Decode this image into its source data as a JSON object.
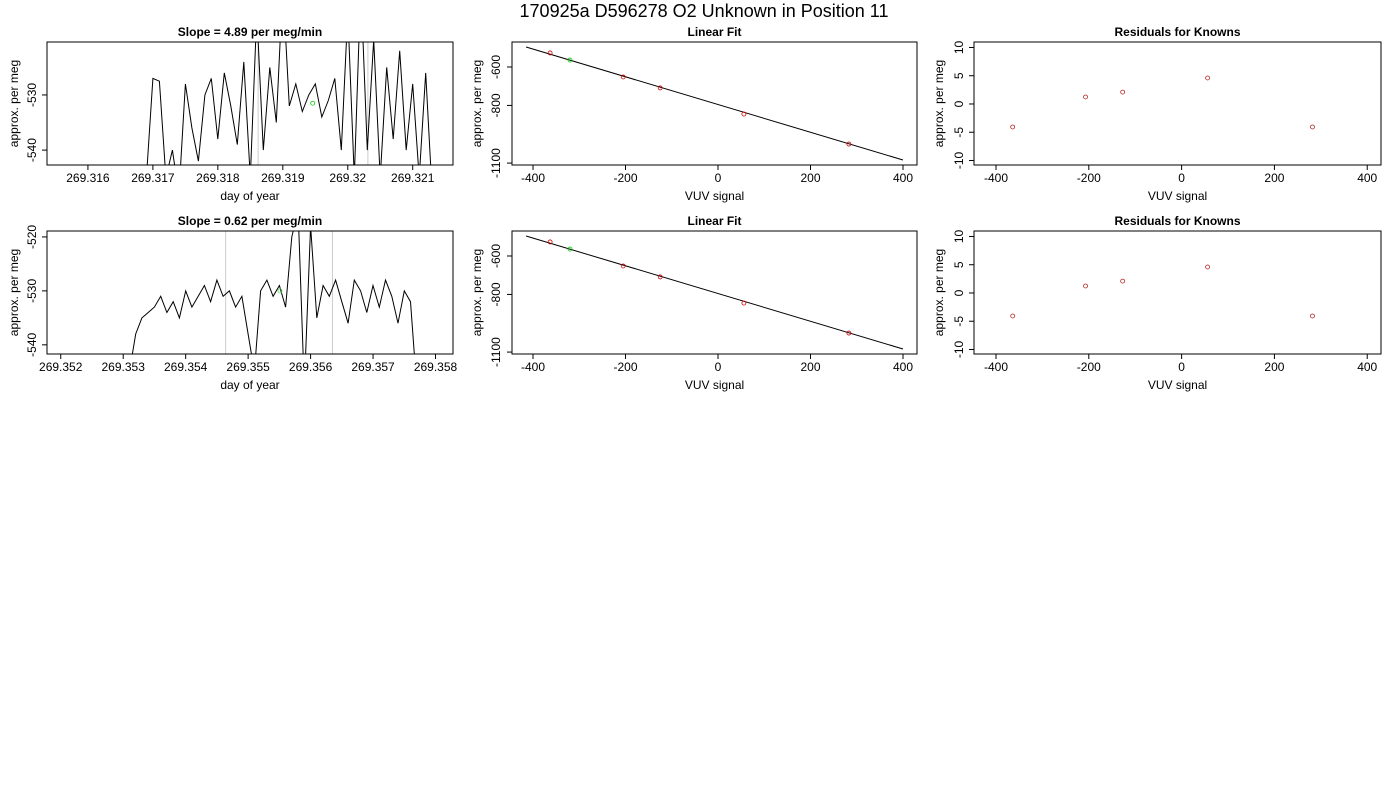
{
  "title": "170925a     D596278   O2 Unknown in Position  11",
  "chart_data": [
    {
      "type": "line",
      "title": "Slope =  4.89  per meg/min",
      "xlabel": "day of year",
      "ylabel": "approx. per meg",
      "xlim": [
        269.31537,
        269.32162
      ],
      "ylim": [
        -542.7,
        -520.4
      ],
      "xticks": [
        269.316,
        269.317,
        269.318,
        269.319,
        269.32,
        269.321
      ],
      "yticks": [
        -540,
        -530
      ],
      "line": {
        "color": "#000000",
        "x": [
          269.3169,
          269.317,
          269.3171,
          269.3172,
          269.3173,
          269.3174,
          269.3175,
          269.3176,
          269.3177,
          269.3178,
          269.3179,
          269.318,
          269.3181,
          269.3182,
          269.3183,
          269.3184,
          269.3185,
          269.3186,
          269.3187,
          269.3188,
          269.3189,
          269.319,
          269.3191,
          269.3192,
          269.3193,
          269.3194,
          269.3195,
          269.3196,
          269.3197,
          269.3198,
          269.3199,
          269.32,
          269.3201,
          269.3202,
          269.3203,
          269.3204,
          269.3205,
          269.3206,
          269.3207,
          269.3208,
          269.3209,
          269.321,
          269.3211,
          269.3212,
          269.3213
        ],
        "values": [
          -545,
          -527,
          -527.5,
          -545,
          -540,
          -548,
          -528,
          -536,
          -542,
          -530,
          -527,
          -538,
          -526,
          -532,
          -539,
          -524,
          -545,
          -515,
          -540,
          -525,
          -535,
          -510,
          -532,
          -528,
          -533,
          -530,
          -528,
          -534,
          -531,
          -527,
          -540,
          -515,
          -545,
          -510,
          -540,
          -520,
          -545,
          -525,
          -538,
          -522,
          -540,
          -528,
          -545,
          -526,
          -548
        ]
      },
      "point": {
        "color": "#00cc00",
        "x": [
          269.31946
        ],
        "values": [
          -531.5
        ]
      },
      "vlines": {
        "color": "#cccccc",
        "values": [
          269.31862,
          269.32031
        ]
      }
    },
    {
      "type": "scatter",
      "title": "Linear Fit",
      "xlabel": "VUV signal",
      "ylabel": "approx. per meg",
      "xlim": [
        -445.4,
        430.3
      ],
      "ylim": [
        -1110,
        -470
      ],
      "xticks": [
        -400,
        -200,
        0,
        200,
        400
      ],
      "yticks": [
        -600,
        -800,
        -1100
      ],
      "points": [
        {
          "color": "#cc0000",
          "x": [
            -363,
            -205,
            -125,
            56,
            283
          ],
          "values": [
            -527,
            -652,
            -709,
            -845,
            -1001
          ]
        },
        {
          "color": "#00cc00",
          "x": [
            -320
          ],
          "values": [
            -564
          ]
        }
      ],
      "fit": {
        "color": "#000000",
        "x": [
          -415,
          400
        ],
        "values": [
          -496,
          -1084
        ]
      }
    },
    {
      "type": "scatter",
      "title": "Residuals for Knowns",
      "xlabel": "VUV signal",
      "ylabel": "approx. per meg",
      "xlim": [
        -447.4,
        429.7
      ],
      "ylim": [
        -10.8,
        10.97
      ],
      "xticks": [
        -400,
        -200,
        0,
        200,
        400
      ],
      "yticks": [
        -10,
        -5,
        0,
        5,
        10
      ],
      "points": [
        {
          "color": "#b22222",
          "x": [
            -364,
            -207,
            -127,
            56,
            282
          ],
          "values": [
            -4.07,
            1.24,
            2.1,
            4.6,
            -4.07
          ]
        }
      ]
    },
    {
      "type": "line",
      "title": "Slope =  0.62  per meg/min",
      "xlabel": "day of year",
      "ylabel": "approx. per meg",
      "xlim": [
        269.35178,
        269.35828
      ],
      "ylim": [
        -541.7,
        -518.9
      ],
      "xticks": [
        269.352,
        269.353,
        269.354,
        269.355,
        269.356,
        269.357,
        269.358
      ],
      "yticks": [
        -540,
        -530,
        -520
      ],
      "line": {
        "color": "#000000",
        "x": [
          269.3531,
          269.3532,
          269.3533,
          269.3534,
          269.3535,
          269.3536,
          269.3537,
          269.3538,
          269.3539,
          269.354,
          269.3541,
          269.3542,
          269.3543,
          269.3544,
          269.3545,
          269.3546,
          269.3547,
          269.3548,
          269.3549,
          269.355,
          269.3551,
          269.3552,
          269.3553,
          269.3554,
          269.3555,
          269.3556,
          269.3557,
          269.3558,
          269.3559,
          269.356,
          269.3561,
          269.3562,
          269.3563,
          269.3564,
          269.3565,
          269.3566,
          269.3567,
          269.3568,
          269.3569,
          269.357,
          269.3571,
          269.3572,
          269.3573,
          269.3574,
          269.3575,
          269.3576,
          269.3577
        ],
        "values": [
          -545,
          -538,
          -535,
          -534,
          -533,
          -531,
          -534,
          -532,
          -535,
          -530,
          -533,
          -531,
          -529,
          -532,
          -528,
          -531,
          -530,
          -533,
          -531,
          -538,
          -545,
          -530,
          -528,
          -531,
          -529,
          -533,
          -520,
          -515,
          -548,
          -518,
          -535,
          -529,
          -531,
          -528,
          -532,
          -536,
          -528,
          -530,
          -534,
          -529,
          -533,
          -528,
          -531,
          -536,
          -530,
          -532,
          -548
        ]
      },
      "point": {
        "color": "#66dd66",
        "x": [
          269.35551
        ],
        "values": [
          -530
        ]
      },
      "vlines": {
        "color": "#cccccc",
        "values": [
          269.35464,
          269.35635
        ]
      }
    },
    {
      "type": "scatter",
      "title": "Linear Fit",
      "xlabel": "VUV signal",
      "ylabel": "approx. per meg",
      "xlim": [
        -445.4,
        430.3
      ],
      "ylim": [
        -1110,
        -470
      ],
      "xticks": [
        -400,
        -200,
        0,
        200,
        400
      ],
      "yticks": [
        -600,
        -800,
        -1100
      ],
      "points": [
        {
          "color": "#cc0000",
          "x": [
            -363,
            -205,
            -125,
            56,
            283
          ],
          "values": [
            -527,
            -652,
            -709,
            -845,
            -1001
          ]
        },
        {
          "color": "#00cc00",
          "x": [
            -320
          ],
          "values": [
            -564
          ]
        }
      ],
      "fit": {
        "color": "#000000",
        "x": [
          -415,
          400
        ],
        "values": [
          -496,
          -1084
        ]
      }
    },
    {
      "type": "scatter",
      "title": "Residuals for Knowns",
      "xlabel": "VUV signal",
      "ylabel": "approx. per meg",
      "xlim": [
        -447.4,
        429.7
      ],
      "ylim": [
        -10.8,
        10.97
      ],
      "xticks": [
        -400,
        -200,
        0,
        200,
        400
      ],
      "yticks": [
        -10,
        -5,
        0,
        5,
        10
      ],
      "points": [
        {
          "color": "#b22222",
          "x": [
            -364,
            -207,
            -127,
            56,
            282
          ],
          "values": [
            -4.07,
            1.24,
            2.1,
            4.6,
            -4.07
          ]
        }
      ]
    }
  ]
}
